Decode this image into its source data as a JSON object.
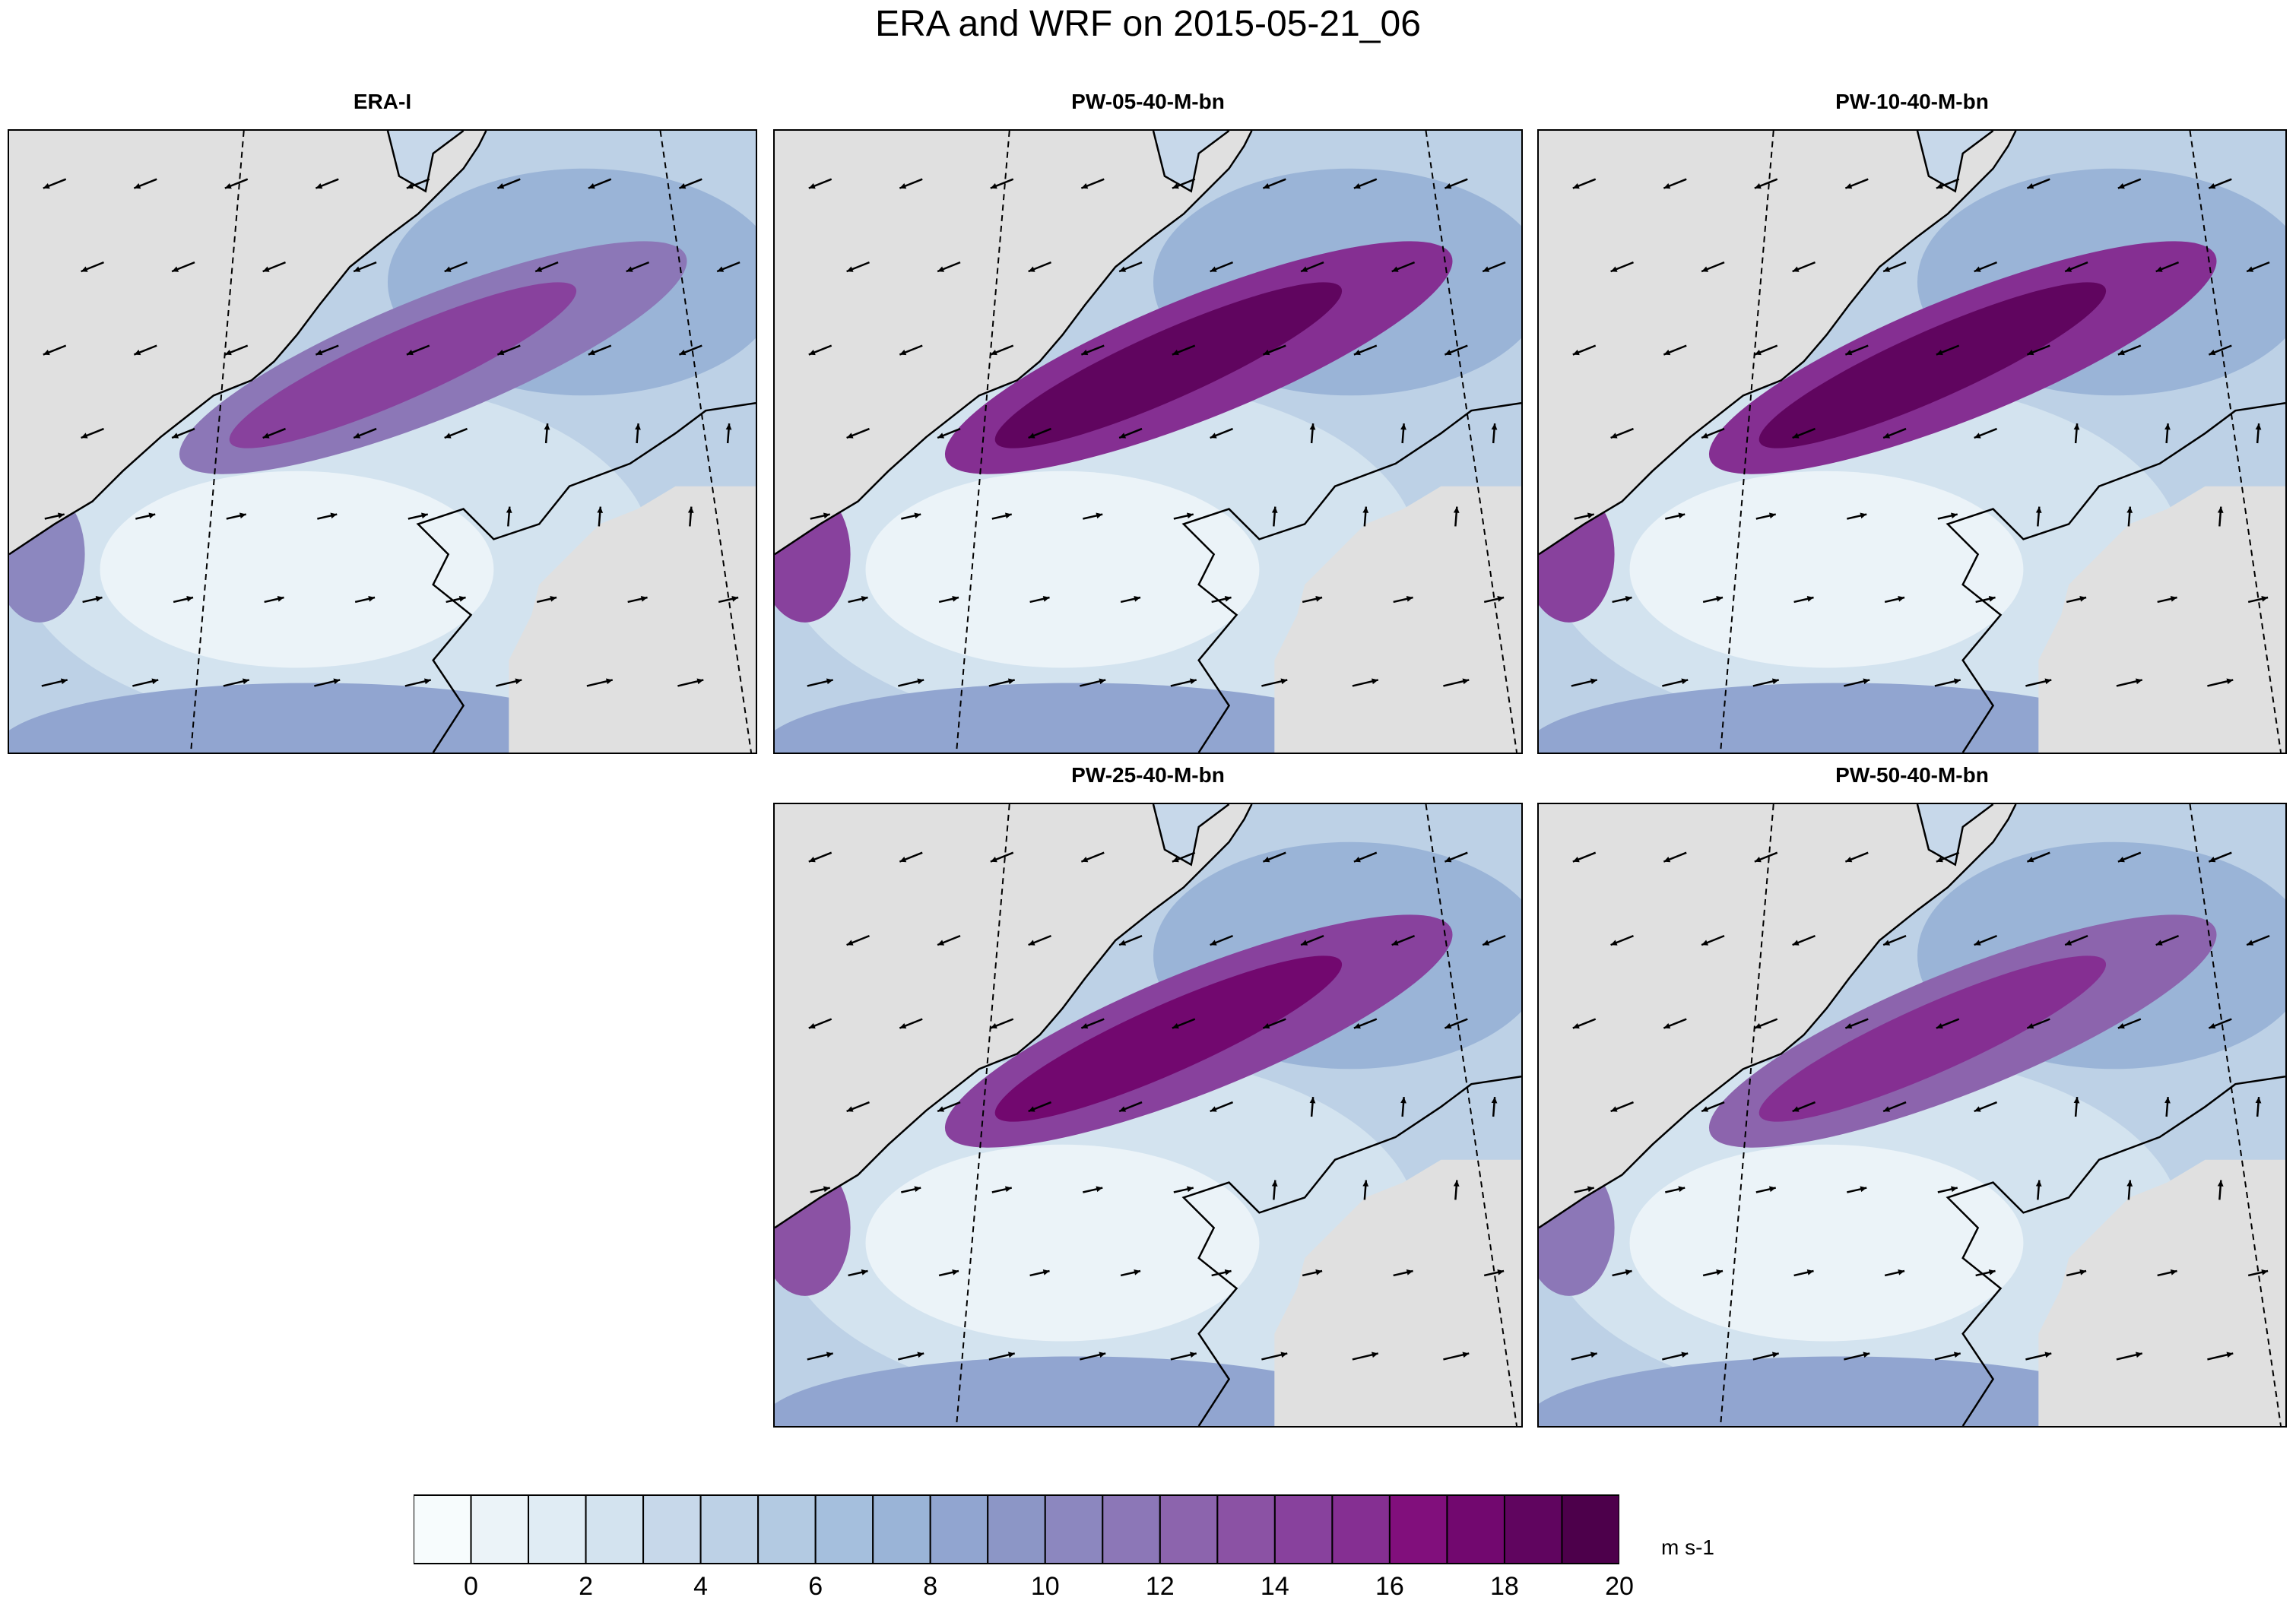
{
  "title": "ERA and WRF on 2015-05-21_06",
  "panels": [
    {
      "id": "era",
      "title": "ERA-I",
      "jet": 0.55
    },
    {
      "id": "pw05",
      "title": "PW-05-40-M-bn",
      "jet": 1.0
    },
    {
      "id": "pw10",
      "title": "PW-10-40-M-bn",
      "jet": 0.95
    },
    {
      "id": "pw25",
      "title": "PW-25-40-M-bn",
      "jet": 0.85
    },
    {
      "id": "pw50",
      "title": "PW-50-40-M-bn",
      "jet": 0.65
    }
  ],
  "colorbar": {
    "unit": "m s-1",
    "tick_labels": [
      "0",
      "2",
      "4",
      "6",
      "8",
      "10",
      "12",
      "14",
      "16",
      "18",
      "20"
    ],
    "colors": [
      "#f7fcfd",
      "#ebf3f8",
      "#e0ecf4",
      "#d3e3ef",
      "#c7d8ea",
      "#bdd1e6",
      "#b3cae2",
      "#a5bfdd",
      "#9ab4d7",
      "#91a5d0",
      "#8c96c6",
      "#8c87bf",
      "#8c77b7",
      "#8c64ad",
      "#8b52a4",
      "#88419d",
      "#852f92",
      "#810f7c",
      "#72086f",
      "#60055f",
      "#4d004b"
    ],
    "land_color": "#e0e0e0"
  }
}
